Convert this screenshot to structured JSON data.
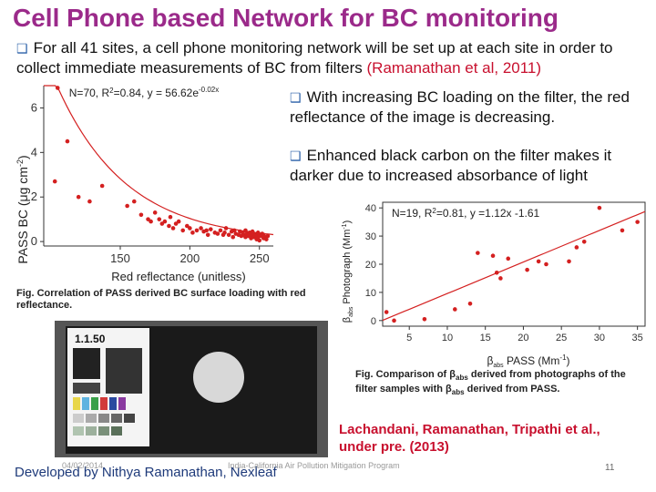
{
  "slide": {
    "title": "Cell Phone based Network for BC monitoring",
    "bullet1_text": "For all 41 sites, a cell phone monitoring network will be set up at each site in order to collect immediate measurements of BC from filters ",
    "bullet1_ref": "(Ramanathan et al, 2011)",
    "bullet2": "With increasing BC loading on the filter, the red reflectance of the image is decreasing.",
    "bullet3": "Enhanced black carbon on the filter makes it darker due to increased absorbance of light",
    "caption1": "Fig. Correlation of PASS derived BC surface loading with red reflectance.",
    "caption2_a": "Fig. Comparison of β",
    "caption2_sub1": "abs",
    "caption2_b": " derived from photographs of the filter samples with β",
    "caption2_sub2": "abs",
    "caption2_c": " derived from PASS.",
    "credit_line1": "Lachandani, Ramanathan, Tripathi et al.,",
    "credit_line2": "under pre. (2013)",
    "photo_card_label": "1.1.50",
    "footer_developed": "Developed by Nithya Ramanathan, Nexleaf",
    "footer_date": "04/02/2014",
    "footer_program": "India-California Air Pollution Mitigation Program",
    "footer_page": "11"
  },
  "colors": {
    "title": "#9b2a8a",
    "bullet": "#2a5fa8",
    "reference": "#c8102e",
    "points": "#d42020",
    "fit": "#d42020",
    "credit": "#c8102e"
  },
  "chart_data": [
    {
      "type": "scatter",
      "annotation_a": "N=70, R",
      "annotation_sup": "2",
      "annotation_b": "=0.84, y = 56.62e",
      "annotation_exp": "-0.02x",
      "xlabel": "Red reflectance (unitless)",
      "ylabel": "PASS BC (μg cm",
      "ylabel_sup": "-2",
      "ylabel_end": ")",
      "xlim": [
        95,
        260
      ],
      "ylim": [
        -0.2,
        7
      ],
      "xticks": [
        150,
        200,
        250
      ],
      "yticks": [
        0,
        2,
        4,
        6
      ],
      "fit": {
        "a": 56.62,
        "b": -0.02
      },
      "series": [
        {
          "x": [
            105,
            112,
            103,
            120,
            128,
            137,
            155,
            160,
            165,
            170,
            172,
            175,
            178,
            180,
            182,
            185,
            186,
            188,
            190,
            192,
            195,
            198,
            200,
            202,
            205,
            208,
            210,
            212,
            213,
            215,
            218,
            220,
            222,
            224,
            225,
            226,
            228,
            230,
            231,
            232,
            233,
            235,
            236,
            237,
            238,
            239,
            240,
            240,
            241,
            242,
            243,
            244,
            244,
            245,
            246,
            246,
            247,
            248,
            248,
            249,
            249,
            250,
            250,
            251,
            252,
            253,
            253,
            254,
            255,
            256
          ],
          "y": [
            6.9,
            4.5,
            2.7,
            2.0,
            1.8,
            2.5,
            1.6,
            1.8,
            1.2,
            1.0,
            0.9,
            1.3,
            1.0,
            0.8,
            0.9,
            0.7,
            1.1,
            0.6,
            0.8,
            0.9,
            0.5,
            0.7,
            0.6,
            0.4,
            0.5,
            0.6,
            0.45,
            0.5,
            0.3,
            0.55,
            0.4,
            0.35,
            0.5,
            0.3,
            0.4,
            0.6,
            0.3,
            0.45,
            0.2,
            0.5,
            0.35,
            0.3,
            0.45,
            0.25,
            0.4,
            0.3,
            0.2,
            0.5,
            0.35,
            0.25,
            0.4,
            0.3,
            0.15,
            0.45,
            0.2,
            0.35,
            0.3,
            0.25,
            0.1,
            0.4,
            0.2,
            0.3,
            0.05,
            0.25,
            0.35,
            0.15,
            0.3,
            0.2,
            0.1,
            0.25
          ]
        }
      ]
    },
    {
      "type": "scatter",
      "annotation_a": "N=19, R",
      "annotation_sup": "2",
      "annotation_b": "=0.81, y =1.12x -1.61",
      "xlabel_beta": "β",
      "xlabel_sub": "abs",
      "xlabel_rest": " PASS (Mm",
      "xlabel_sup": "-1",
      "xlabel_end": ")",
      "ylabel_beta": "β",
      "ylabel_sub": "abs",
      "ylabel_rest": " Photograph (Mm",
      "ylabel_sup": "-1",
      "ylabel_end": ")",
      "xlim": [
        1.5,
        36
      ],
      "ylim": [
        -2,
        42
      ],
      "xticks": [
        5,
        10,
        15,
        20,
        25,
        30,
        35
      ],
      "yticks": [
        0,
        10,
        20,
        30,
        40
      ],
      "fit": {
        "slope": 1.12,
        "intercept": -1.61
      },
      "series": [
        {
          "x": [
            2,
            3,
            7,
            11,
            13,
            14,
            16,
            16.5,
            17,
            18,
            20.5,
            22,
            23,
            26,
            27,
            28,
            30,
            33,
            35
          ],
          "y": [
            3,
            0,
            0.5,
            4,
            6,
            24,
            23,
            17,
            15,
            22,
            18,
            21,
            20,
            21,
            26,
            28,
            40,
            32,
            35
          ]
        }
      ]
    }
  ]
}
